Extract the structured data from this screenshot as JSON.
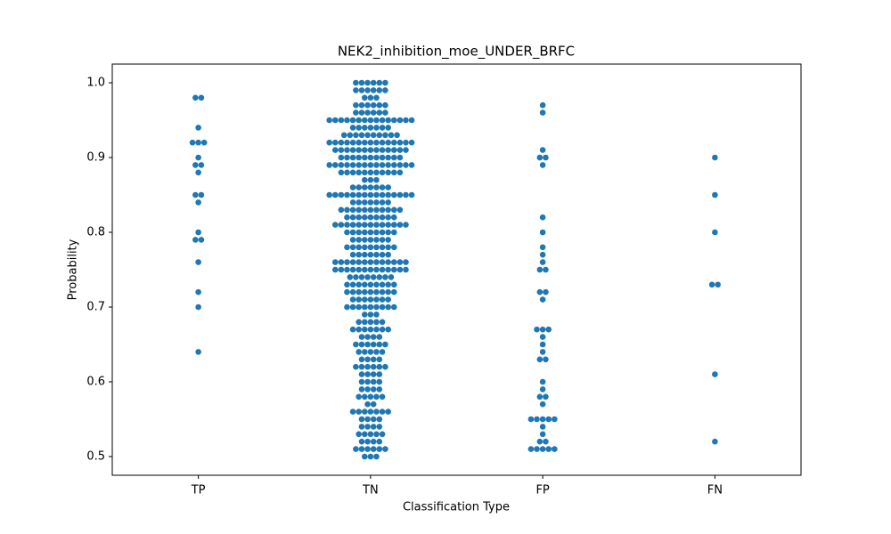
{
  "chart_data": {
    "type": "swarm",
    "title": "NEK2_inhibition_moe_UNDER_BRFC",
    "x_label": "Classification Type",
    "y_label": "Probability",
    "color": "#1f77b4",
    "categories": [
      "TP",
      "TN",
      "FP",
      "FN"
    ],
    "ylim": [
      0.475,
      1.025
    ],
    "yticks": [
      0.5,
      0.6,
      0.7,
      0.8,
      0.9,
      {
        "value": 1,
        "label": "1.0"
      }
    ],
    "values": [
      [
        0.98,
        0.98,
        0.94,
        0.92,
        0.92,
        0.92,
        0.9,
        0.89,
        0.89,
        0.88,
        0.85,
        0.85,
        0.84,
        0.8,
        0.79,
        0.79,
        0.76,
        0.72,
        0.7,
        0.64
      ],
      [
        1,
        1,
        1,
        1,
        1,
        1,
        0.99,
        0.99,
        0.99,
        0.99,
        0.99,
        0.99,
        0.98,
        0.98,
        0.98,
        0.97,
        0.97,
        0.97,
        0.97,
        0.97,
        0.97,
        0.96,
        0.96,
        0.96,
        0.96,
        0.96,
        0.96,
        0.95,
        0.95,
        0.95,
        0.95,
        0.95,
        0.95,
        0.95,
        0.95,
        0.95,
        0.95,
        0.95,
        0.95,
        0.95,
        0.95,
        0.95,
        0.94,
        0.94,
        0.94,
        0.94,
        0.94,
        0.94,
        0.94,
        0.93,
        0.93,
        0.93,
        0.93,
        0.93,
        0.93,
        0.93,
        0.93,
        0.93,
        0.93,
        0.92,
        0.92,
        0.92,
        0.92,
        0.92,
        0.92,
        0.92,
        0.92,
        0.92,
        0.92,
        0.92,
        0.92,
        0.92,
        0.92,
        0.92,
        0.91,
        0.91,
        0.91,
        0.91,
        0.91,
        0.91,
        0.91,
        0.91,
        0.91,
        0.91,
        0.91,
        0.91,
        0.91,
        0.9,
        0.9,
        0.9,
        0.9,
        0.9,
        0.9,
        0.9,
        0.9,
        0.9,
        0.9,
        0.9,
        0.89,
        0.89,
        0.89,
        0.89,
        0.89,
        0.89,
        0.89,
        0.89,
        0.89,
        0.89,
        0.89,
        0.89,
        0.89,
        0.89,
        0.89,
        0.88,
        0.88,
        0.88,
        0.88,
        0.88,
        0.88,
        0.88,
        0.88,
        0.88,
        0.88,
        0.88,
        0.87,
        0.87,
        0.87,
        0.86,
        0.86,
        0.86,
        0.86,
        0.86,
        0.86,
        0.86,
        0.85,
        0.85,
        0.85,
        0.85,
        0.85,
        0.85,
        0.85,
        0.85,
        0.85,
        0.85,
        0.85,
        0.85,
        0.85,
        0.85,
        0.85,
        0.84,
        0.84,
        0.84,
        0.84,
        0.84,
        0.84,
        0.84,
        0.83,
        0.83,
        0.83,
        0.83,
        0.83,
        0.83,
        0.83,
        0.83,
        0.83,
        0.83,
        0.83,
        0.82,
        0.82,
        0.82,
        0.82,
        0.82,
        0.82,
        0.82,
        0.82,
        0.82,
        0.81,
        0.81,
        0.81,
        0.81,
        0.81,
        0.81,
        0.81,
        0.81,
        0.81,
        0.81,
        0.81,
        0.81,
        0.81,
        0.8,
        0.8,
        0.8,
        0.8,
        0.8,
        0.8,
        0.8,
        0.8,
        0.8,
        0.79,
        0.79,
        0.79,
        0.79,
        0.79,
        0.79,
        0.79,
        0.78,
        0.78,
        0.78,
        0.78,
        0.78,
        0.78,
        0.78,
        0.78,
        0.78,
        0.77,
        0.77,
        0.77,
        0.77,
        0.77,
        0.77,
        0.77,
        0.76,
        0.76,
        0.76,
        0.76,
        0.76,
        0.76,
        0.76,
        0.76,
        0.76,
        0.76,
        0.76,
        0.76,
        0.76,
        0.75,
        0.75,
        0.75,
        0.75,
        0.75,
        0.75,
        0.75,
        0.75,
        0.75,
        0.75,
        0.75,
        0.75,
        0.75,
        0.74,
        0.74,
        0.74,
        0.74,
        0.74,
        0.74,
        0.74,
        0.74,
        0.73,
        0.73,
        0.73,
        0.73,
        0.73,
        0.73,
        0.73,
        0.73,
        0.73,
        0.72,
        0.72,
        0.72,
        0.72,
        0.72,
        0.72,
        0.72,
        0.72,
        0.72,
        0.71,
        0.71,
        0.71,
        0.71,
        0.71,
        0.71,
        0.71,
        0.7,
        0.7,
        0.7,
        0.7,
        0.7,
        0.7,
        0.7,
        0.7,
        0.7,
        0.69,
        0.69,
        0.69,
        0.68,
        0.68,
        0.68,
        0.68,
        0.68,
        0.67,
        0.67,
        0.67,
        0.67,
        0.67,
        0.67,
        0.67,
        0.66,
        0.66,
        0.66,
        0.66,
        0.65,
        0.65,
        0.65,
        0.65,
        0.65,
        0.65,
        0.64,
        0.64,
        0.64,
        0.64,
        0.64,
        0.63,
        0.63,
        0.63,
        0.63,
        0.62,
        0.62,
        0.62,
        0.62,
        0.62,
        0.62,
        0.61,
        0.61,
        0.61,
        0.61,
        0.6,
        0.6,
        0.6,
        0.6,
        0.59,
        0.59,
        0.59,
        0.59,
        0.58,
        0.58,
        0.58,
        0.58,
        0.58,
        0.57,
        0.57,
        0.56,
        0.56,
        0.56,
        0.56,
        0.56,
        0.56,
        0.56,
        0.55,
        0.55,
        0.55,
        0.55,
        0.54,
        0.54,
        0.54,
        0.54,
        0.53,
        0.53,
        0.53,
        0.53,
        0.53,
        0.52,
        0.52,
        0.52,
        0.52,
        0.51,
        0.51,
        0.51,
        0.51,
        0.51,
        0.51,
        0.5,
        0.5,
        0.5
      ],
      [
        0.97,
        0.96,
        0.91,
        0.9,
        0.9,
        0.89,
        0.82,
        0.8,
        0.78,
        0.77,
        0.76,
        0.75,
        0.75,
        0.72,
        0.72,
        0.71,
        0.67,
        0.67,
        0.67,
        0.66,
        0.65,
        0.64,
        0.63,
        0.63,
        0.6,
        0.59,
        0.58,
        0.58,
        0.57,
        0.55,
        0.55,
        0.55,
        0.55,
        0.55,
        0.54,
        0.53,
        0.52,
        0.52,
        0.51,
        0.51,
        0.51,
        0.51,
        0.51
      ],
      [
        0.9,
        0.85,
        0.8,
        0.73,
        0.73,
        0.61,
        0.52
      ]
    ]
  }
}
